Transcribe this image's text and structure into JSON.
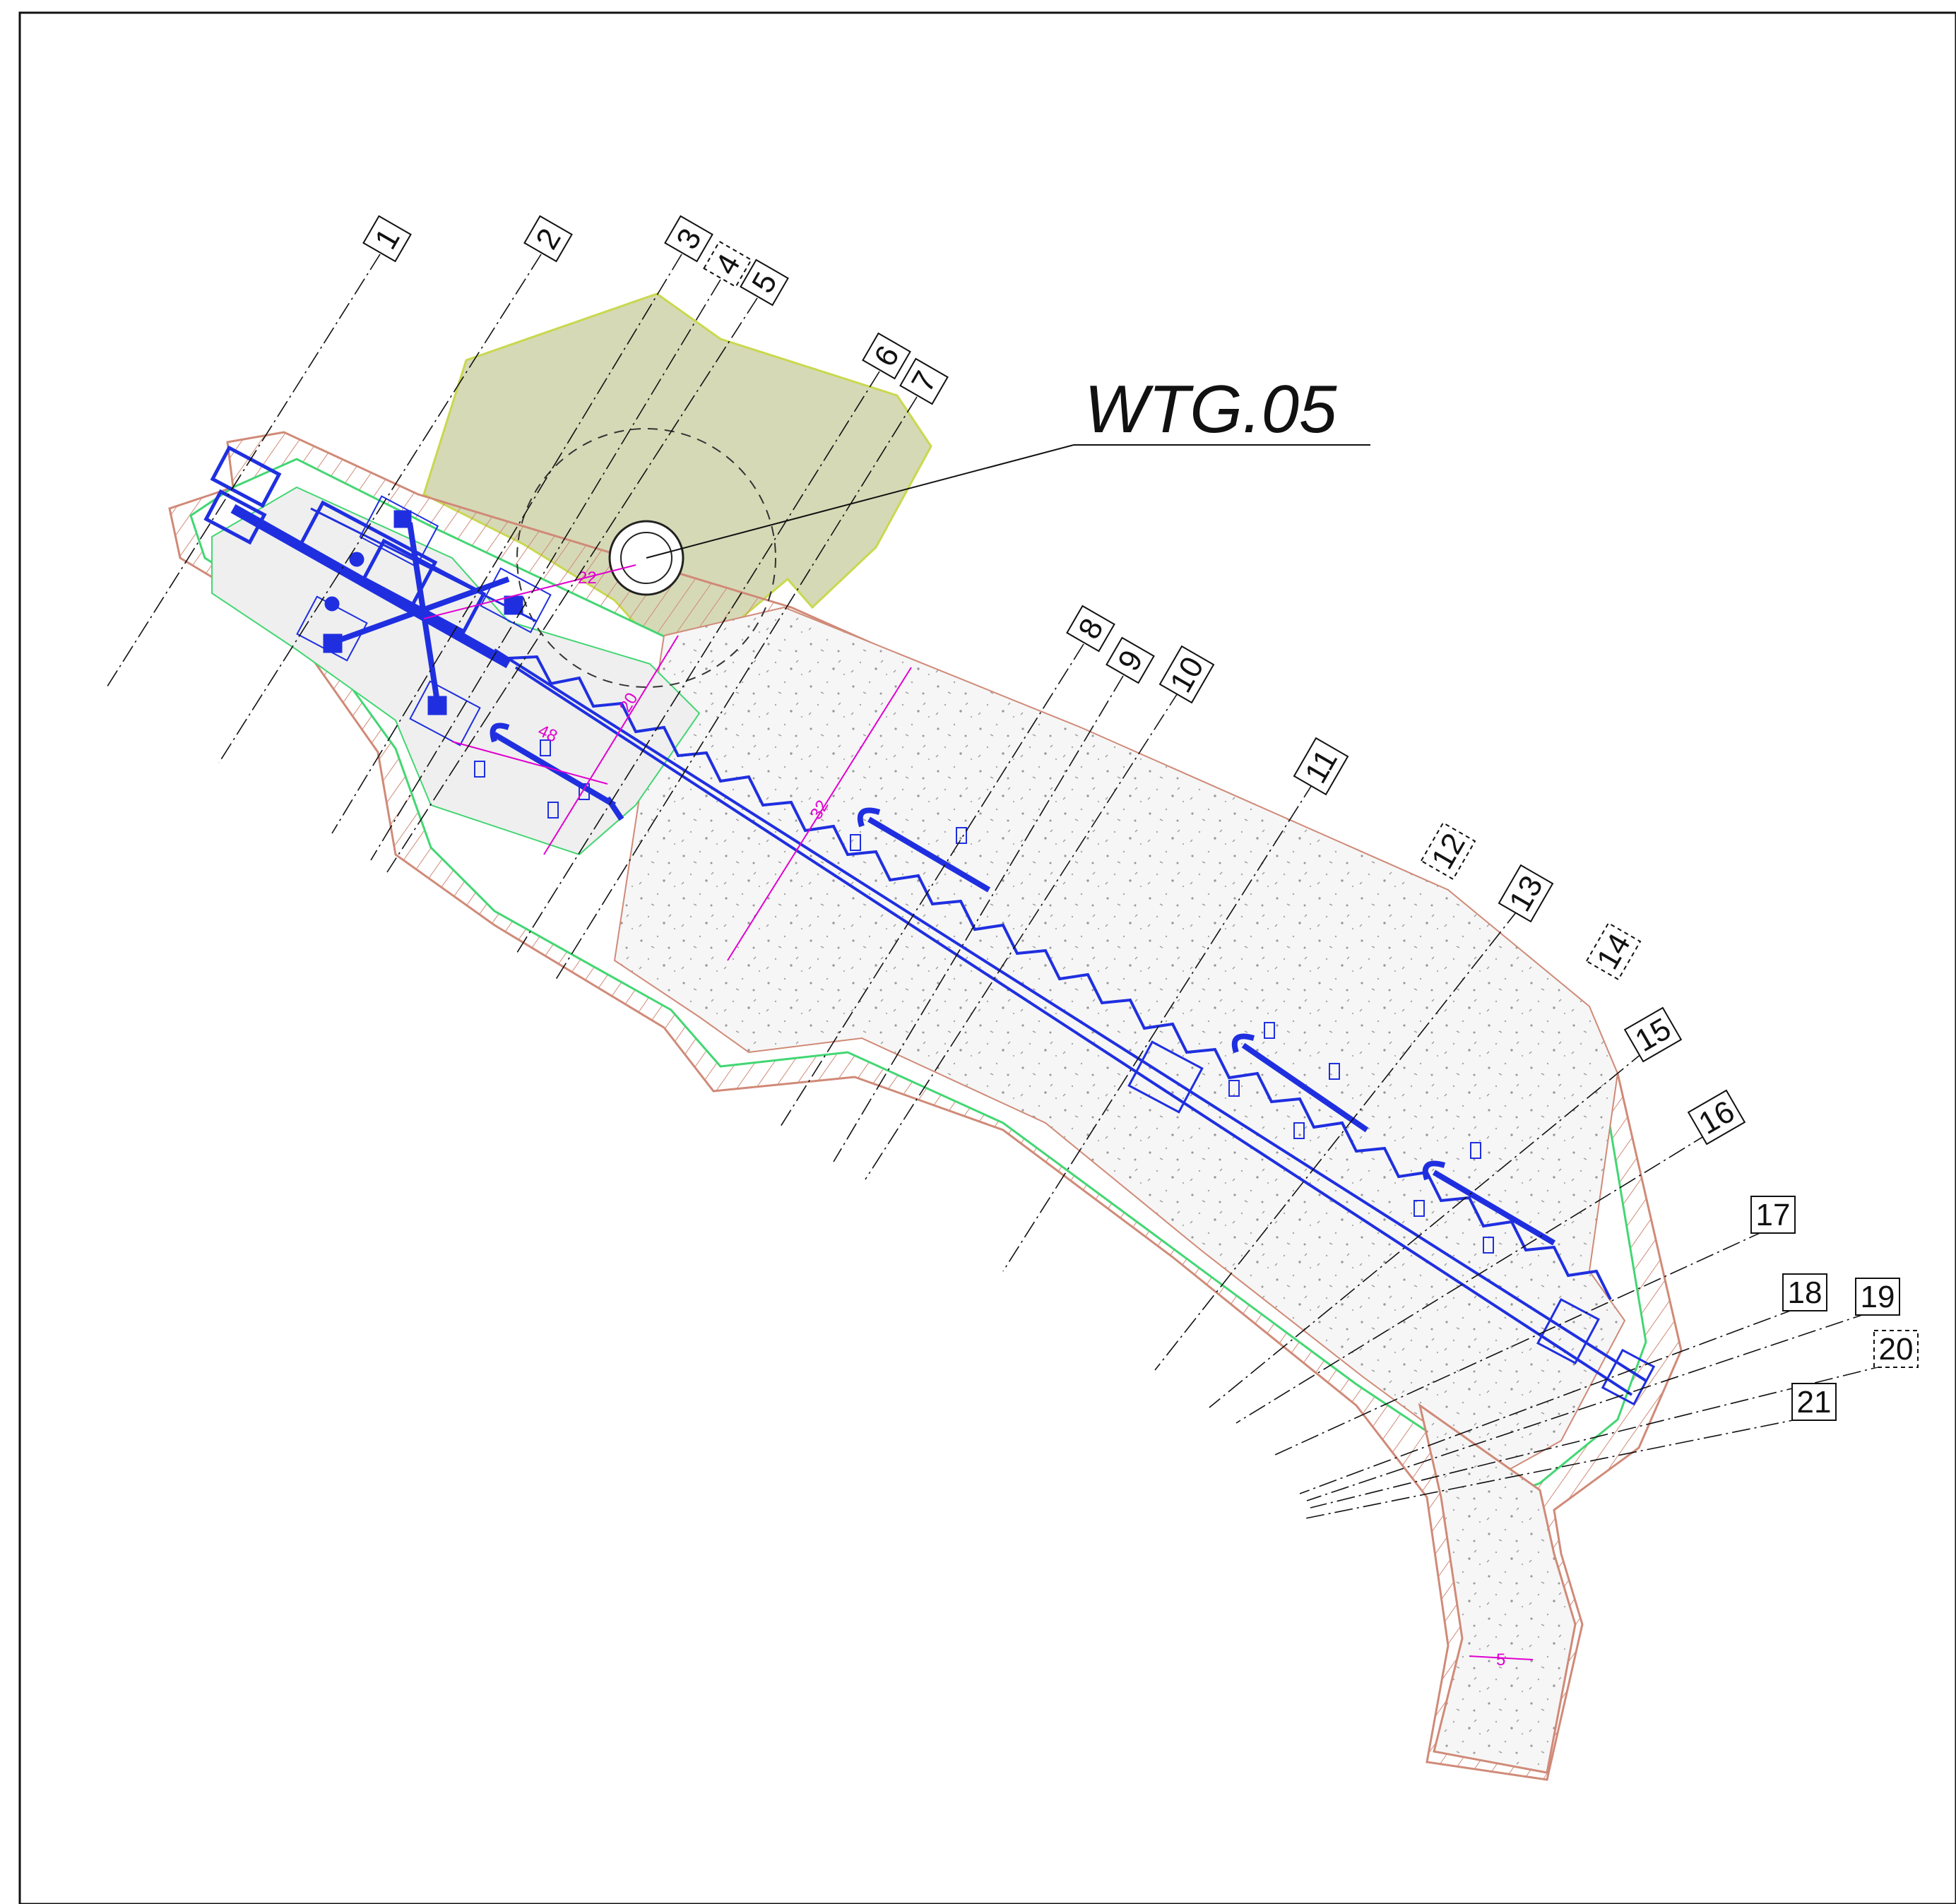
{
  "drawing": {
    "turbine_label": "WTG.05",
    "callouts": [
      "1",
      "2",
      "3",
      "4",
      "5",
      "6",
      "7",
      "8",
      "9",
      "10",
      "11",
      "12",
      "13",
      "14",
      "15",
      "16",
      "17",
      "18",
      "19",
      "20",
      "21"
    ],
    "dimensions": {
      "radius_to_turbine": "22",
      "pad_width": "20",
      "pad_length": "48",
      "boom_segment": "32",
      "access_road_width": "5"
    },
    "colors": {
      "crane": "#1f2fe0",
      "dimension": "#e000d0",
      "embankment": "#d08a78",
      "pad_outline": "#43d673",
      "forest": "#d6d9b6",
      "gravel": "#f0f0f0"
    }
  }
}
